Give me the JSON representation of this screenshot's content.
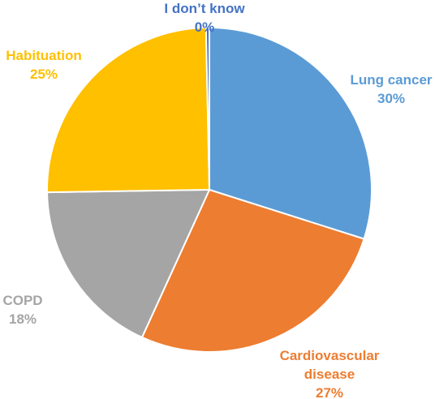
{
  "chart_data": {
    "type": "pie",
    "categories": [
      "Lung cancer",
      "Cardiovascular disease",
      "COPD",
      "Habituation",
      "I don’t know"
    ],
    "values": [
      30,
      27,
      18,
      25,
      0
    ],
    "value_labels": [
      "30%",
      "27%",
      "18%",
      "25%",
      "0%"
    ],
    "title": "",
    "legend": "none",
    "colors": [
      "#5B9BD5",
      "#ED7D31",
      "#A5A5A5",
      "#FFC000",
      "#4472C4"
    ]
  }
}
